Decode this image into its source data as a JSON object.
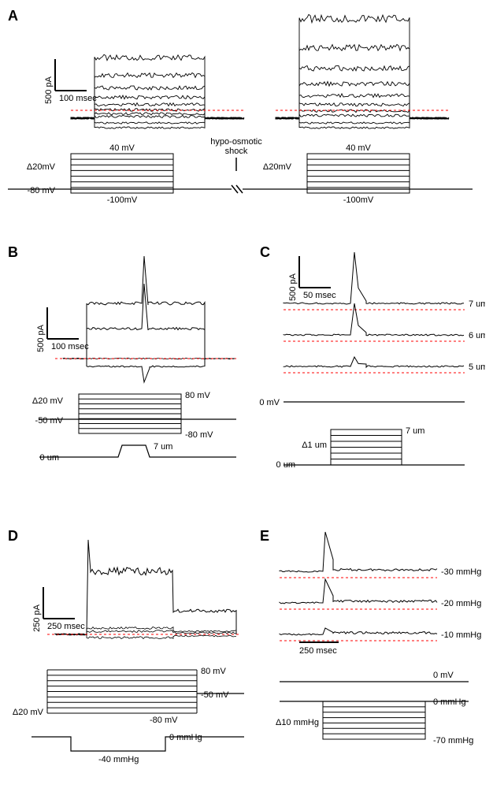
{
  "figure": {
    "background_color": "#ffffff",
    "trace_color": "#000000",
    "dashed_color": "#ff0000",
    "label_fontsize": 11,
    "panel_label_fontsize": 18,
    "panels": {
      "A": {
        "label": "A",
        "scalebar": {
          "y_label": "500 pA",
          "x_label": "100 msec"
        },
        "protocol_left": {
          "top_label": "40 mV",
          "bottom_label": "-100mV",
          "step_label": "Δ20mV",
          "holding_label": "-80 mV",
          "n_steps": 8
        },
        "center_label": "hypo-osmotic\nshock",
        "protocol_right": {
          "top_label": "40 mV",
          "bottom_label": "-100mV",
          "step_label": "Δ20mV",
          "n_steps": 8
        }
      },
      "B": {
        "label": "B",
        "scalebar": {
          "y_label": "500 pA",
          "x_label": "100 msec"
        },
        "protocol_v": {
          "top_label": "80 mV",
          "bottom_label": "-80 mV",
          "step_label": "Δ20 mV",
          "holding_label": "-50 mV",
          "n_steps": 9
        },
        "protocol_d": {
          "start_label": "0 um",
          "peak_label": "7 um"
        }
      },
      "C": {
        "label": "C",
        "scalebar": {
          "y_label": "500 pA",
          "x_label": "50 msec"
        },
        "traces": [
          {
            "label": "7 um"
          },
          {
            "label": "6 um"
          },
          {
            "label": "5 um"
          }
        ],
        "holding_label": "0 mV",
        "protocol_d": {
          "start_label": "0 um",
          "peak_label": "7 um",
          "step_label": "Δ1 um",
          "n_steps": 7
        }
      },
      "D": {
        "label": "D",
        "scalebar": {
          "y_label": "250 pA",
          "x_label": "250 msec"
        },
        "protocol_v": {
          "top_label": "80 mV",
          "bottom_label": "-80 mV",
          "step_label": "Δ20 mV",
          "holding_label": "-50 mV",
          "n_steps": 9
        },
        "protocol_p": {
          "start_label": "0 mmHg",
          "peak_label": "-40 mmHg"
        }
      },
      "E": {
        "label": "E",
        "scalebar": {
          "x_label": "250 msec"
        },
        "traces": [
          {
            "label": "-30 mmHg"
          },
          {
            "label": "-20 mmHg"
          },
          {
            "label": "-10 mmHg"
          }
        ],
        "holding_label": "0 mV",
        "protocol_p": {
          "top_label": "0 mmHg",
          "bottom_label": "-70 mmHg",
          "step_label": "Δ10 mmHg",
          "n_steps": 7
        }
      }
    }
  }
}
